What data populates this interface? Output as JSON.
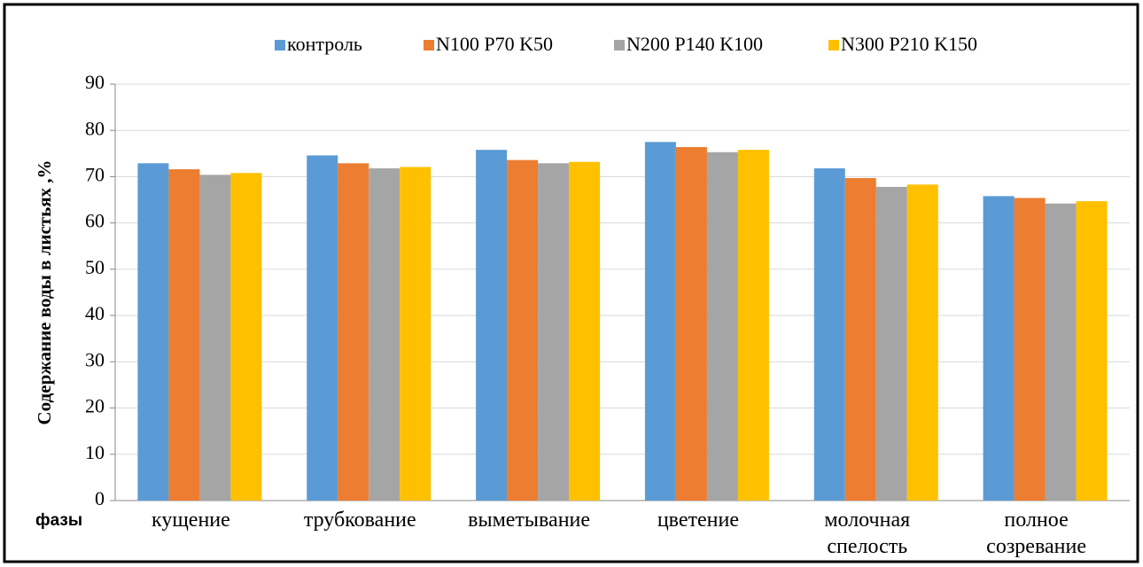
{
  "chart_data": {
    "type": "bar",
    "y_axis_label": "Содержание  воды в листьях ,%",
    "x_axis_label": "фазы",
    "categories": [
      "кущение",
      "трубкование",
      "выметывание",
      "цветение",
      "молочная спелость",
      "полное созревание"
    ],
    "series": [
      {
        "name": "контроль",
        "color": "#5b9bd5",
        "values": [
          72.9,
          74.6,
          75.8,
          77.5,
          71.8,
          65.8
        ]
      },
      {
        "name": "N100 P70 K50",
        "color": "#ed7d31",
        "values": [
          71.6,
          72.9,
          73.6,
          76.4,
          69.7,
          65.4
        ]
      },
      {
        "name": "N200 P140 K100",
        "color": "#a5a5a5",
        "values": [
          70.4,
          71.8,
          72.9,
          75.3,
          67.8,
          64.2
        ]
      },
      {
        "name": "N300 P210 K150",
        "color": "#ffc000",
        "values": [
          70.8,
          72.1,
          73.2,
          75.8,
          68.3,
          64.7
        ]
      }
    ],
    "ylim": [
      0,
      90
    ],
    "yticks": [
      0,
      10,
      20,
      30,
      40,
      50,
      60,
      70,
      80,
      90
    ],
    "grid": true,
    "legend": "top"
  }
}
